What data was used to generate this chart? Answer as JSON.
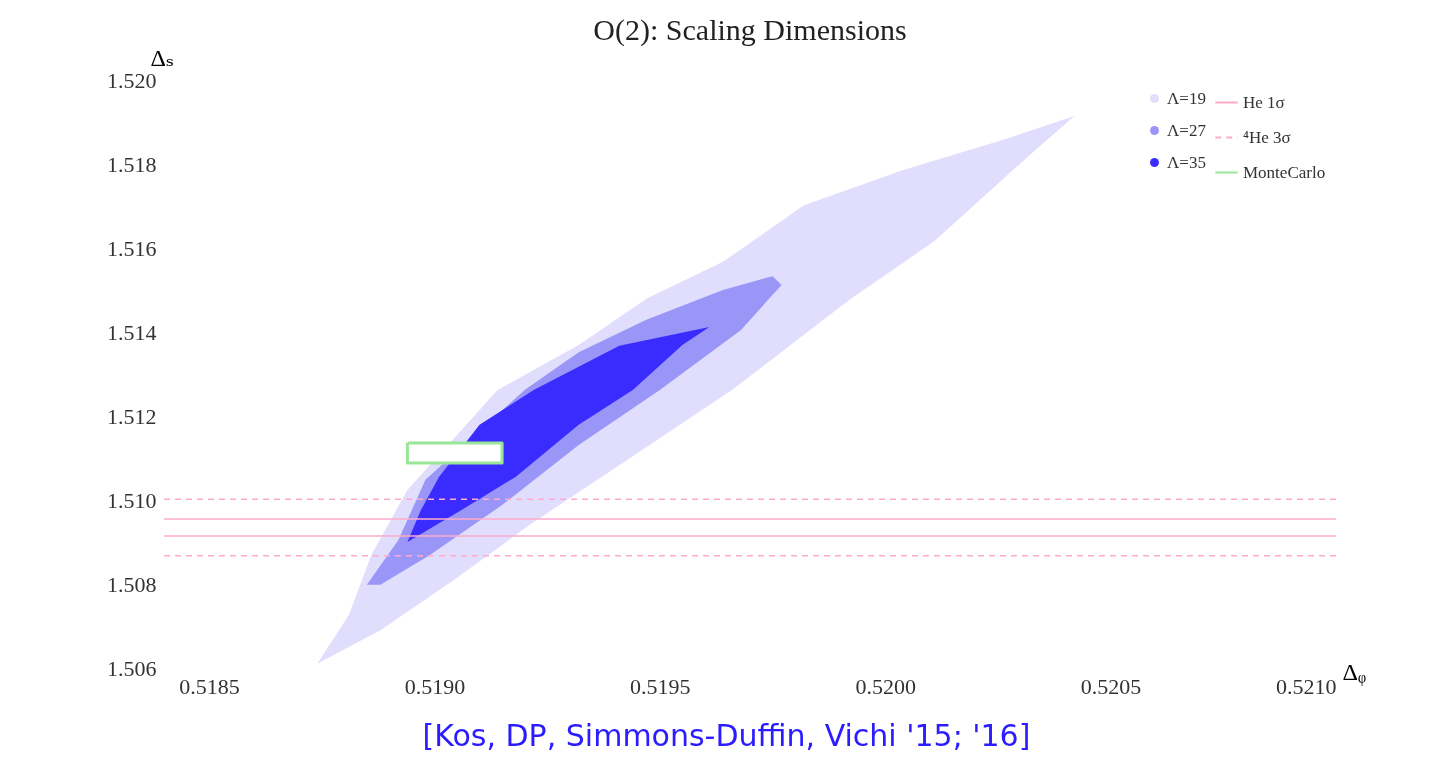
{
  "chart_data": {
    "type": "area",
    "title": "O(2): Scaling Dimensions",
    "xlabel": "Δᵩ",
    "ylabel": "Δₛ",
    "xlim": [
      0.5184,
      0.521
    ],
    "ylim": [
      1.506,
      1.52
    ],
    "xticks": [
      0.5185,
      {
        "value": 0.519,
        "label": "0.5190"
      },
      0.5195,
      {
        "value": 0.52,
        "label": "0.5200"
      },
      0.5205,
      {
        "value": 0.521,
        "label": "0.5210"
      }
    ],
    "yticks": [
      1.506,
      1.508,
      {
        "value": 1.51,
        "label": "1.510"
      },
      1.512,
      1.514,
      1.516,
      1.518,
      {
        "value": 1.52,
        "label": "1.520"
      }
    ],
    "grid": false,
    "legend": "top right",
    "series": [
      {
        "name": "Λ=19",
        "color": "#e0defc",
        "x": [
          0.51874,
          0.51881,
          0.51886,
          0.51894,
          0.51914,
          0.51932,
          0.51947,
          0.51964,
          0.51982,
          0.52004,
          0.52026,
          0.52042,
          0.52032,
          0.52011,
          0.51992,
          0.51966,
          0.51941,
          0.51921,
          0.51904,
          0.51888
        ],
        "values": [
          1.5061,
          1.50726,
          1.50869,
          1.51024,
          1.51262,
          1.51369,
          1.51479,
          1.51567,
          1.51702,
          1.51786,
          1.51857,
          1.51914,
          1.51821,
          1.51617,
          1.51476,
          1.51262,
          1.51083,
          1.5094,
          1.50807,
          1.5069
        ]
      },
      {
        "name": "Λ=27",
        "color": "#9a96f8",
        "x": [
          0.51885,
          0.51892,
          0.51898,
          0.5192,
          0.51932,
          0.51947,
          0.51964,
          0.51975,
          0.51977,
          0.51968,
          0.5195,
          0.51932,
          0.51915,
          0.51899,
          0.51888
        ],
        "values": [
          1.50798,
          1.50905,
          1.51048,
          1.51262,
          1.51352,
          1.51429,
          1.515,
          1.51533,
          1.51512,
          1.51405,
          1.51262,
          1.51131,
          1.50988,
          1.50869,
          1.50798
        ]
      },
      {
        "name": "Λ=35",
        "color": "#3a2cff",
        "x": [
          0.51894,
          0.51897,
          0.51901,
          0.5191,
          0.51922,
          0.51941,
          0.51961,
          0.51955,
          0.51944,
          0.51932,
          0.51918,
          0.51906
        ],
        "values": [
          1.509,
          1.50976,
          1.51055,
          1.51179,
          1.51262,
          1.51367,
          1.51412,
          1.51369,
          1.51262,
          1.51179,
          1.51055,
          1.50976
        ]
      },
      {
        "name": "MonteCarlo",
        "type": "area",
        "color": "#99e699",
        "line_style": "solid",
        "x": [
          0.51894,
          0.51915,
          0.51915,
          0.51894,
          0.51894
        ],
        "values": [
          1.51136,
          1.51136,
          1.51088,
          1.51088,
          1.51136
        ]
      }
    ],
    "ref_lines": [
      {
        "axis": "y",
        "value": 1.50955,
        "label": "He 1σ",
        "color": "#ffaacc",
        "line_style": "solid"
      },
      {
        "axis": "y",
        "value": 1.50914,
        "color": "#ffaacc",
        "line_style": "solid"
      },
      {
        "axis": "y",
        "value": 1.51002,
        "label": "⁴He 3σ",
        "color": "#ffaacc",
        "line_style": "dashed"
      },
      {
        "axis": "y",
        "value": 1.50867,
        "color": "#ffaacc",
        "line_style": "dashed"
      }
    ],
    "annotations": [
      "[Kos, DP, Simmons-Duffin, Vichi '15; '16]"
    ]
  }
}
